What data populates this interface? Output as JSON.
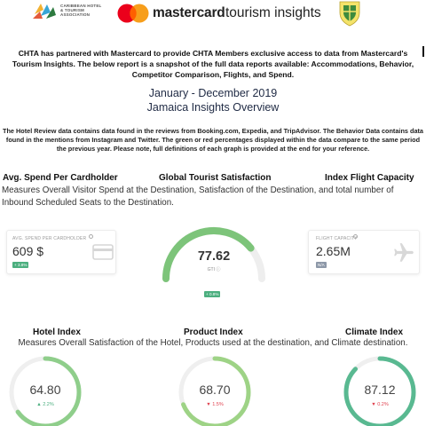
{
  "header": {
    "chta_text": "CARIBBEAN HOTEL & TOURISM ASSOCIATION",
    "mc_brand": "mastercard",
    "mc_product": "tourism insights",
    "colors": {
      "mc_red": "#eb001b",
      "mc_orange": "#f79e1b",
      "mc_overlap": "#ff5f00"
    }
  },
  "intro": "CHTA has partnered with Mastercard to provide CHTA Members exclusive access to data from Mastercard's Tourism Insights. The below report is a snapshot of the full data reports available: Accommodations, Behavior, Competitor Comparison, Flights, and Spend.",
  "report": {
    "period": "January - December 2019",
    "title": "Jamaica Insights Overview"
  },
  "description": "The Hotel Review data contains data found in the reviews from Booking.com, Expedia, and TripAdvisor. The Behavior Data contains data found in the mentions from Instagram and Twitter. The green or red percentages displayed within the data compare to the same period the previous year. Please note, full definitions of each graph is provided at the end for your reference.",
  "section1": {
    "head_spend": "Avg. Spend Per Cardholder",
    "head_gts": "Global Tourist Satisfaction",
    "head_flight": "Index Flight Capacity",
    "description": "Measures Overall Visitor Spend at the Destination, Satisfaction of the Destination, and total number of Inbound Scheduled Seats to the Destination."
  },
  "spend_card": {
    "label": "AVG. SPEND PER CARDHOLDER",
    "value": "609 $",
    "delta": "+ 3.8%",
    "icon": "credit-card-icon"
  },
  "gts": {
    "value": "77.62",
    "label": "GTI",
    "score_fraction": 0.78,
    "delta": "+ 0.8%",
    "color": "#7dc47a"
  },
  "flight_card": {
    "label": "FLIGHT CAPACITY",
    "value": "2.65M",
    "delta": "N/A",
    "icon": "airplane-icon"
  },
  "section2": {
    "head_hotel": "Hotel Index",
    "head_product": "Product Index",
    "head_climate": "Climate Index",
    "description": "Measures Overall Satisfaction of the Hotel, Products used at the destination, and Climate destination."
  },
  "indices": [
    {
      "value": "64.80",
      "delta": "▲ 2.2%",
      "direction": "up",
      "score_fraction": 0.65,
      "color": "#8fce8b"
    },
    {
      "value": "68.70",
      "delta": "▼ 1.5%",
      "direction": "down",
      "score_fraction": 0.69,
      "color": "#9ed386"
    },
    {
      "value": "87.12",
      "delta": "▼ 0.2%",
      "direction": "down",
      "score_fraction": 0.87,
      "color": "#59b991"
    }
  ]
}
